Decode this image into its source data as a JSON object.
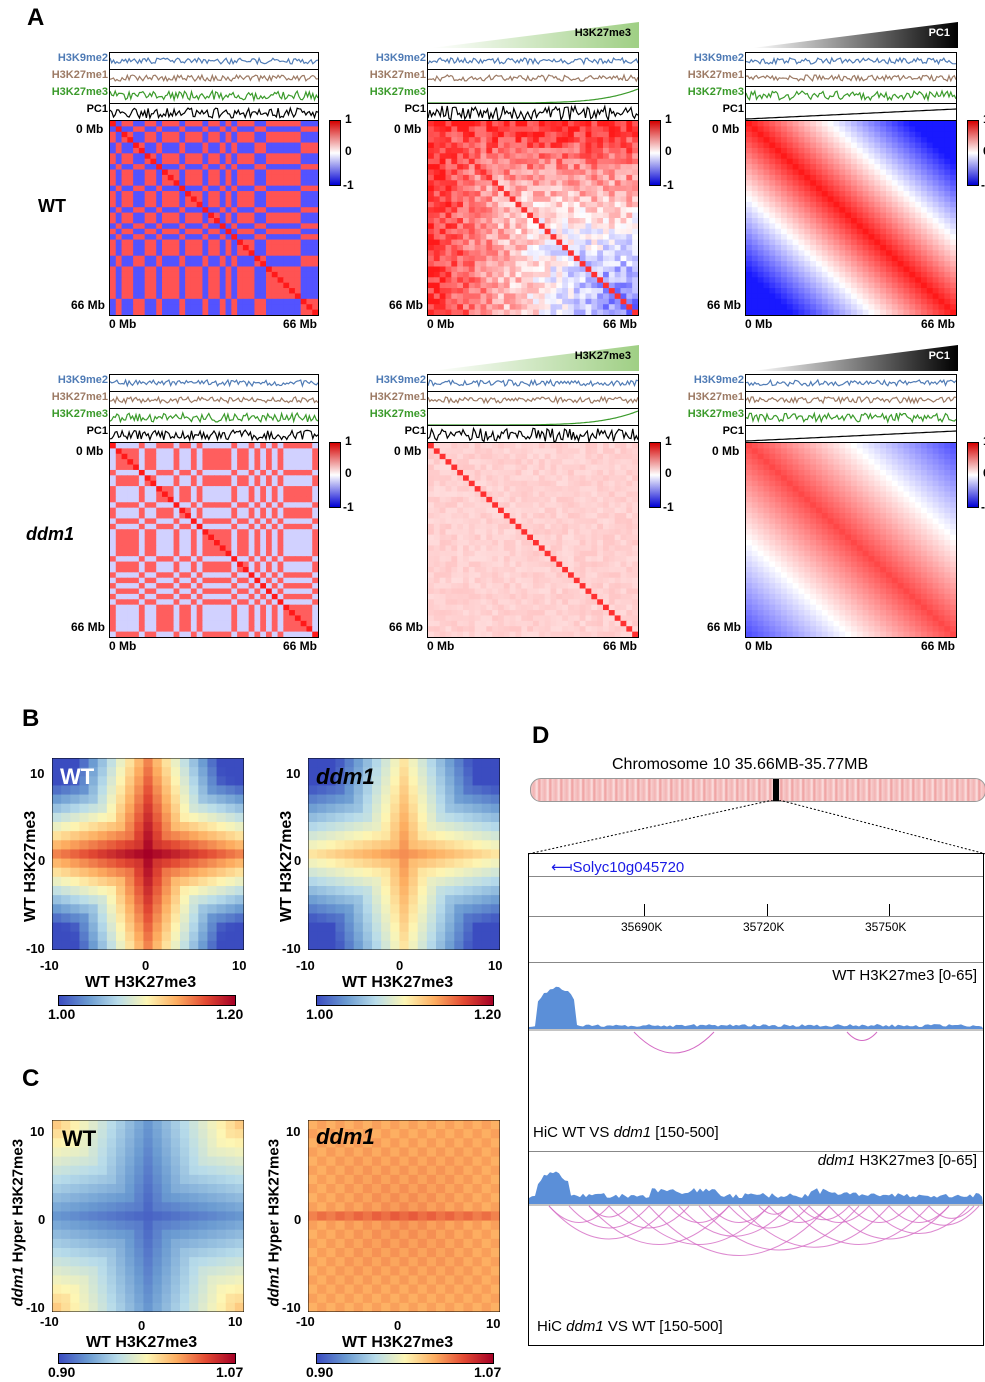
{
  "panels": {
    "A": "A",
    "B": "B",
    "C": "C",
    "D": "D"
  },
  "tracks": {
    "h3k9me2": "H3K9me2",
    "h3k27me1": "H3K27me1",
    "h3k27me3": "H3K27me3",
    "pc1": "PC1"
  },
  "axis": {
    "start": "0 Mb",
    "end": "66 Mb"
  },
  "colorbar_a": {
    "max": "1",
    "mid": "0",
    "min": "-1"
  },
  "rows": {
    "wt": "WT",
    "ddm1": "ddm1"
  },
  "wedges": {
    "h3k27me3": "H3K27me3",
    "pc1": "PC1"
  },
  "panel_b": {
    "wt_label": "WT",
    "ddm1_label": "ddm1",
    "ylabel": "WT H3K27me3",
    "xlabel": "WT H3K27me3",
    "ticks": {
      "pos": "10",
      "zero": "0",
      "neg": "-10"
    },
    "cbar_min": "1.00",
    "cbar_max": "1.20"
  },
  "panel_c": {
    "wt_label": "WT",
    "ddm1_label": "ddm1",
    "ylabel_ital": "ddm1",
    "ylabel_rest": " Hyper H3K27me3",
    "xlabel": "WT H3K27me3",
    "ticks": {
      "pos": "10",
      "zero": "0",
      "neg": "-10"
    },
    "cbar_min": "0.90",
    "cbar_max": "1.07"
  },
  "panel_d": {
    "chrom_label": "Chromosome 10  35.66MB-35.77MB",
    "gene": "Solyc10g045720",
    "coords": [
      "35690K",
      "35720K",
      "35750K"
    ],
    "wt_track": "WT H3K27me3 [0-65]",
    "hic1_a": "HiC WT VS ",
    "hic1_b": "ddm1",
    "hic1_c": " [150-500]",
    "ddm1_track_a": "ddm1",
    "ddm1_track_b": " H3K27me3 [0-65]",
    "hic2_a": "HiC ",
    "hic2_b": "ddm1",
    "hic2_c": " VS WT [150-500]"
  },
  "colors": {
    "h3k9me2": "#4f7bb5",
    "h3k27me1": "#9c7a64",
    "h3k27me3": "#3a9a2a",
    "pc1": "#000000",
    "gene": "#1a1ae6",
    "arc": "#d46bc4",
    "signal": "#5b8fd8"
  }
}
